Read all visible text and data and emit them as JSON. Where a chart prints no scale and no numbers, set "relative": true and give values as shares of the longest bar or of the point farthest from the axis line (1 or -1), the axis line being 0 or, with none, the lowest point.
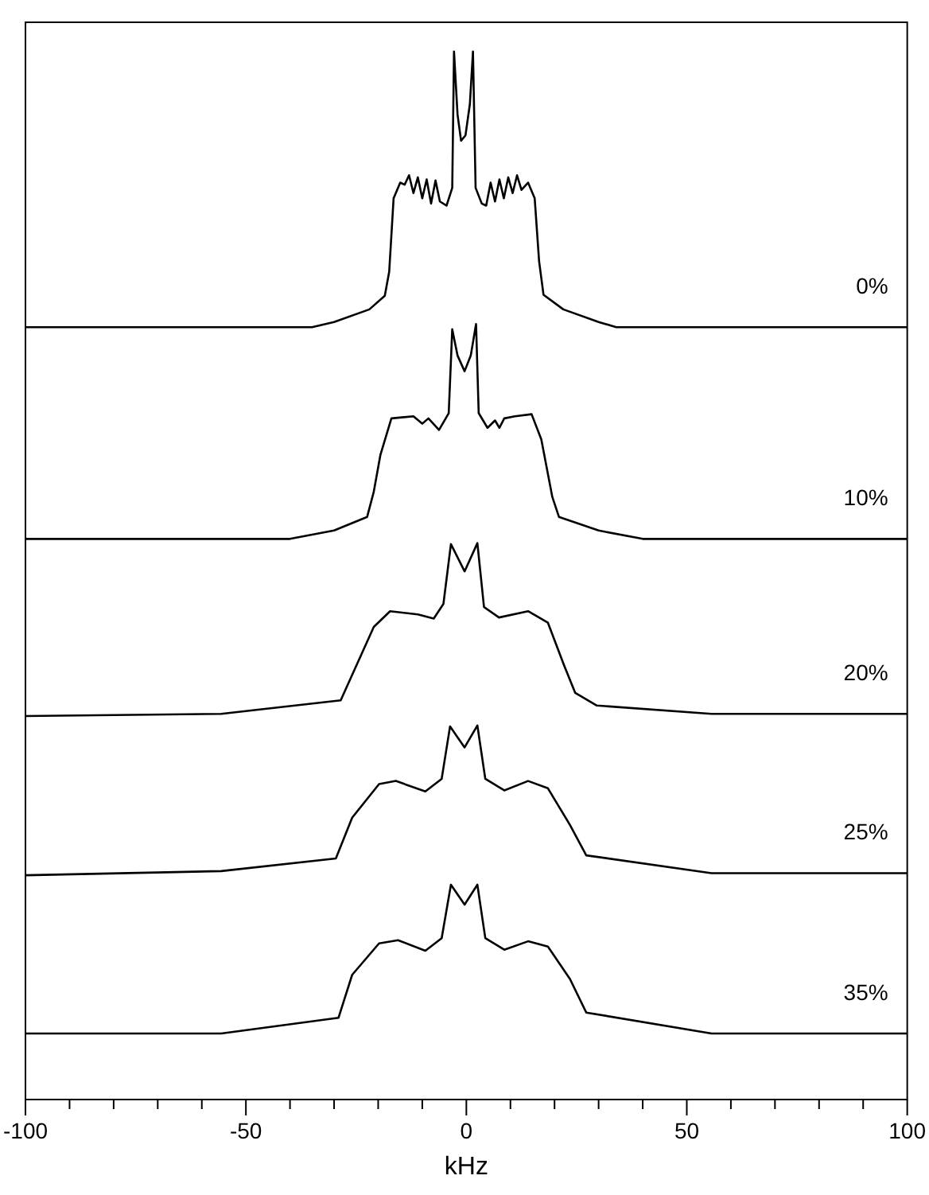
{
  "chart_data": {
    "type": "line",
    "xlabel": "kHz",
    "relative": true,
    "xlim": [
      -100,
      100
    ],
    "xticks": [
      -100,
      {
        "value": -90,
        "label": null
      },
      {
        "value": -80,
        "label": null
      },
      {
        "value": -70,
        "label": null
      },
      {
        "value": -60,
        "label": null
      },
      -50,
      {
        "value": -40,
        "label": null
      },
      {
        "value": -30,
        "label": null
      },
      {
        "value": -20,
        "label": null
      },
      {
        "value": -10,
        "label": null
      },
      0,
      {
        "value": 10,
        "label": null
      },
      {
        "value": 20,
        "label": null
      },
      {
        "value": 30,
        "label": null
      },
      {
        "value": 40,
        "label": null
      },
      50,
      {
        "value": 60,
        "label": null
      },
      {
        "value": 70,
        "label": null
      },
      {
        "value": 80,
        "label": null
      },
      {
        "value": 90,
        "label": null
      },
      100
    ],
    "grid": false,
    "legend": false,
    "marker": "none",
    "line_style": "solid",
    "series": [
      {
        "name": "0%",
        "color": "#000000",
        "x": [
          -100,
          -35,
          -30,
          -22,
          -18.5,
          -17.5,
          -16.5,
          -15,
          -14,
          -13,
          -12,
          -11,
          -10,
          -9,
          -8,
          -7,
          -6,
          -4.5,
          -3.2,
          -2.8,
          -2,
          -1.2,
          -0.2,
          0.8,
          1.5,
          2.1,
          3.5,
          4.5,
          5.5,
          6.5,
          7.5,
          8.5,
          9.5,
          10.5,
          11.5,
          12.5,
          14,
          15.5,
          16.5,
          17.5,
          22,
          30,
          34,
          100
        ],
        "values": [
          0.737,
          0.737,
          0.742,
          0.754,
          0.767,
          0.79,
          0.86,
          0.875,
          0.873,
          0.882,
          0.865,
          0.88,
          0.86,
          0.878,
          0.855,
          0.877,
          0.857,
          0.853,
          0.87,
          1.0,
          0.94,
          0.915,
          0.92,
          0.95,
          1.0,
          0.87,
          0.855,
          0.853,
          0.875,
          0.857,
          0.878,
          0.86,
          0.88,
          0.865,
          0.882,
          0.868,
          0.875,
          0.86,
          0.8,
          0.768,
          0.754,
          0.742,
          0.737,
          0.737
        ]
      },
      {
        "name": "10%",
        "color": "#000000",
        "x": [
          -100,
          -40,
          -30,
          -22.5,
          -21,
          -19.5,
          -17,
          -12,
          -10,
          -8.6,
          -6.2,
          -4,
          -3.2,
          -2,
          -0.4,
          1,
          2.2,
          2.8,
          4.8,
          6.5,
          7.5,
          8.6,
          11,
          14.8,
          17,
          19.5,
          21,
          30,
          40,
          100
        ],
        "values": [
          0.535,
          0.535,
          0.543,
          0.556,
          0.58,
          0.615,
          0.65,
          0.652,
          0.645,
          0.65,
          0.639,
          0.655,
          0.735,
          0.71,
          0.695,
          0.71,
          0.74,
          0.655,
          0.641,
          0.648,
          0.641,
          0.65,
          0.652,
          0.654,
          0.63,
          0.575,
          0.556,
          0.543,
          0.535,
          0.535
        ]
      },
      {
        "name": "20%",
        "color": "#000000",
        "x": [
          -100,
          -55.6,
          -28.5,
          -21,
          -17.3,
          -11,
          -7.4,
          -5.2,
          -3.5,
          -0.4,
          2.5,
          4,
          7.4,
          14,
          18.5,
          22.2,
          24.7,
          29.6,
          55.6,
          100
        ],
        "values": [
          0.366,
          0.368,
          0.381,
          0.451,
          0.466,
          0.463,
          0.459,
          0.473,
          0.53,
          0.504,
          0.531,
          0.47,
          0.46,
          0.466,
          0.455,
          0.414,
          0.388,
          0.376,
          0.368,
          0.368
        ]
      },
      {
        "name": "25%",
        "color": "#000000",
        "x": [
          -100,
          -55.6,
          -29.6,
          -25.9,
          -19.8,
          -16,
          -9.3,
          -5.6,
          -3.7,
          -0.4,
          2.5,
          4.3,
          8.6,
          14,
          18.5,
          23.5,
          27.2,
          55.6,
          100
        ],
        "values": [
          0.214,
          0.218,
          0.23,
          0.269,
          0.301,
          0.304,
          0.294,
          0.306,
          0.356,
          0.336,
          0.357,
          0.306,
          0.295,
          0.304,
          0.297,
          0.262,
          0.233,
          0.216,
          0.216
        ]
      },
      {
        "name": "35%",
        "color": "#000000",
        "x": [
          -100,
          -55.6,
          -29,
          -25.9,
          -19.8,
          -15.5,
          -9.3,
          -5.6,
          -3.5,
          -0.4,
          2.5,
          4.3,
          8.6,
          14,
          18.5,
          23.5,
          27.2,
          55.6,
          100
        ],
        "values": [
          0.063,
          0.063,
          0.078,
          0.119,
          0.149,
          0.152,
          0.142,
          0.154,
          0.205,
          0.186,
          0.205,
          0.154,
          0.143,
          0.151,
          0.146,
          0.115,
          0.083,
          0.063,
          0.063
        ]
      }
    ]
  }
}
